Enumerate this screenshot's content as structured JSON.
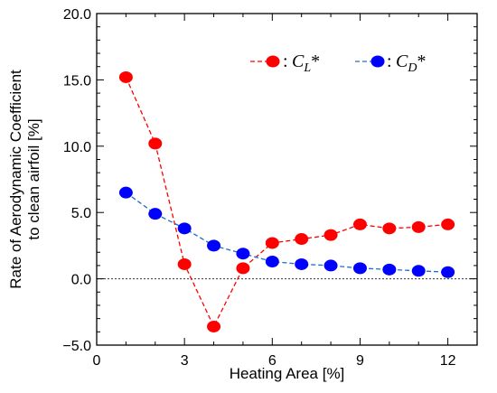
{
  "chart_data": {
    "type": "line",
    "xlabel": "Heating Area [%]",
    "ylabel": [
      "Rate of Aerodynamic Coefficient",
      "to clean airfoil [%]"
    ],
    "xlim": [
      0,
      13
    ],
    "ylim": [
      -5.0,
      20.0
    ],
    "xticks": [
      0,
      3,
      6,
      9,
      12
    ],
    "xtick_labels": [
      "0",
      "3",
      "6",
      "9",
      "12"
    ],
    "yticks": [
      -5.0,
      0.0,
      5.0,
      10.0,
      15.0,
      20.0
    ],
    "ytick_labels": [
      "−5.0",
      "0.0",
      "5.0",
      "10.0",
      "15.0",
      "20.0"
    ],
    "grid": false,
    "reference_line_y": 0,
    "legend_position": "top-right",
    "x": [
      1,
      2,
      3,
      4,
      5,
      6,
      7,
      8,
      9,
      10,
      11,
      12
    ],
    "series": [
      {
        "name": "C_L*",
        "legend_base": "C",
        "legend_sub": "L",
        "legend_suffix": "*",
        "color": "#ff0000",
        "values": [
          15.2,
          10.2,
          1.1,
          -3.6,
          0.8,
          2.7,
          3.0,
          3.3,
          4.1,
          3.8,
          3.9,
          4.1
        ]
      },
      {
        "name": "C_D*",
        "legend_base": "C",
        "legend_sub": "D",
        "legend_suffix": "*",
        "color": "#0000ff",
        "line_color": "#1a6fc4",
        "values": [
          6.5,
          4.9,
          3.8,
          2.5,
          1.9,
          1.3,
          1.1,
          1.0,
          0.8,
          0.7,
          0.6,
          0.5
        ]
      }
    ]
  }
}
